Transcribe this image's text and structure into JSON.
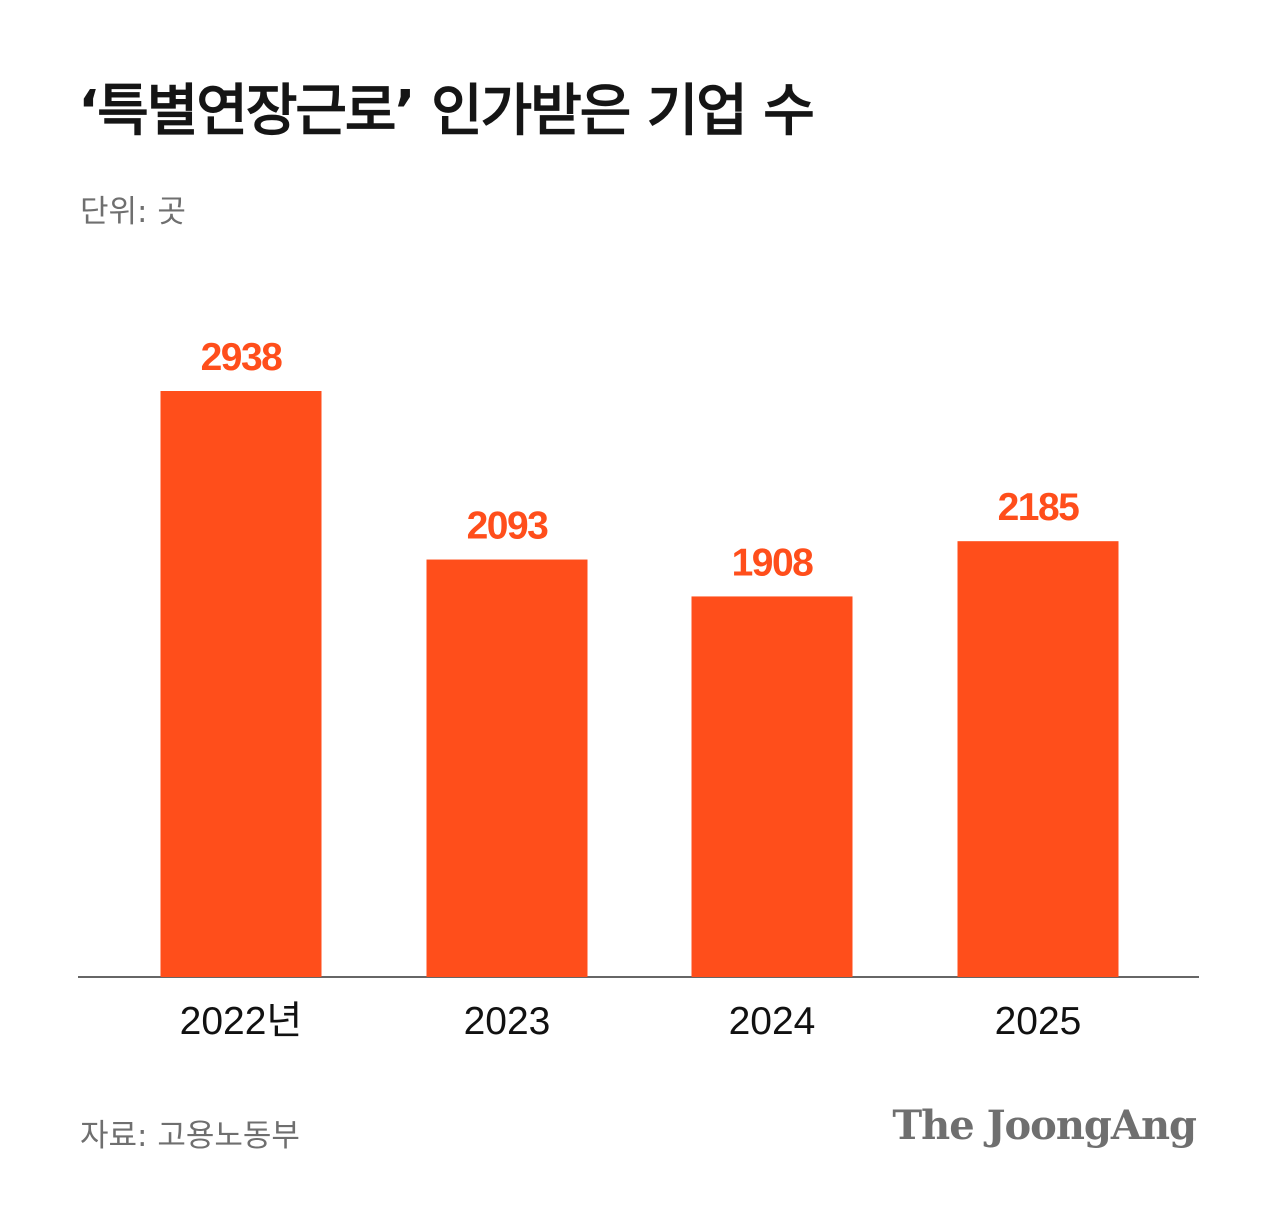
{
  "header": {
    "title": "‘특별연장근로’ 인가받은 기업 수",
    "unit": "단위: 곳"
  },
  "chart_data": {
    "type": "bar",
    "categories": [
      "2022년",
      "2023",
      "2024",
      "2025"
    ],
    "values": [
      2938,
      2093,
      1908,
      2185
    ],
    "title": "‘특별연장근로’ 인가받은 기업 수",
    "xlabel": "",
    "ylabel": "",
    "unit": "단위: 곳",
    "ylim": [
      0,
      3400
    ],
    "grid": false,
    "legend": "none",
    "data_labels": true
  },
  "colors": {
    "bar": "#ff4e1b",
    "label": "#ff4e1b",
    "axis": "#333333",
    "tick_text": "#111111"
  },
  "footer": {
    "source": "자료: 고용노동부",
    "logo": "The JoongAng"
  }
}
